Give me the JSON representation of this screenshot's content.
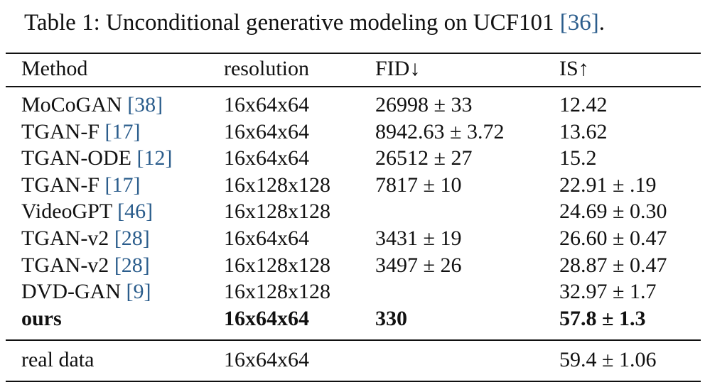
{
  "caption": {
    "text": "Table 1: Unconditional generative modeling on UCF101",
    "cite": "[36]",
    "end": "."
  },
  "table": {
    "header": [
      "Method",
      "resolution",
      "FID↓",
      "IS↑"
    ],
    "rows": [
      {
        "method": "MoCoGAN",
        "cite": "[38]",
        "resolution": "16x64x64",
        "fid": "26998 ± 33",
        "is": "12.42"
      },
      {
        "method": "TGAN-F",
        "cite": "[17]",
        "resolution": "16x64x64",
        "fid": "8942.63 ± 3.72",
        "is": "13.62"
      },
      {
        "method": "TGAN-ODE",
        "cite": "[12]",
        "resolution": "16x64x64",
        "fid": "26512 ± 27",
        "is": "15.2"
      },
      {
        "method": "TGAN-F",
        "cite": "[17]",
        "resolution": "16x128x128",
        "fid": "7817 ± 10",
        "is": "22.91 ± .19"
      },
      {
        "method": "VideoGPT",
        "cite": "[46]",
        "resolution": "16x128x128",
        "is": "24.69 ± 0.30"
      },
      {
        "method": "TGAN-v2",
        "cite": "[28]",
        "resolution": "16x64x64",
        "fid": "3431 ± 19",
        "is": "26.60 ± 0.47"
      },
      {
        "method": "TGAN-v2",
        "cite": "[28]",
        "resolution": "16x128x128",
        "fid": "3497 ± 26",
        "is": "28.87 ± 0.47"
      },
      {
        "method": "DVD-GAN",
        "cite": "[9]",
        "resolution": "16x128x128",
        "is": "32.97 ± 1.7"
      },
      {
        "method": "ours",
        "resolution": "16x64x64",
        "fid": "330",
        "is": "57.8 ± 1.3",
        "bold": true
      }
    ],
    "reference_rows": [
      {
        "method": "real data",
        "resolution": "16x64x64",
        "is": "59.4 ± 1.06"
      }
    ]
  }
}
